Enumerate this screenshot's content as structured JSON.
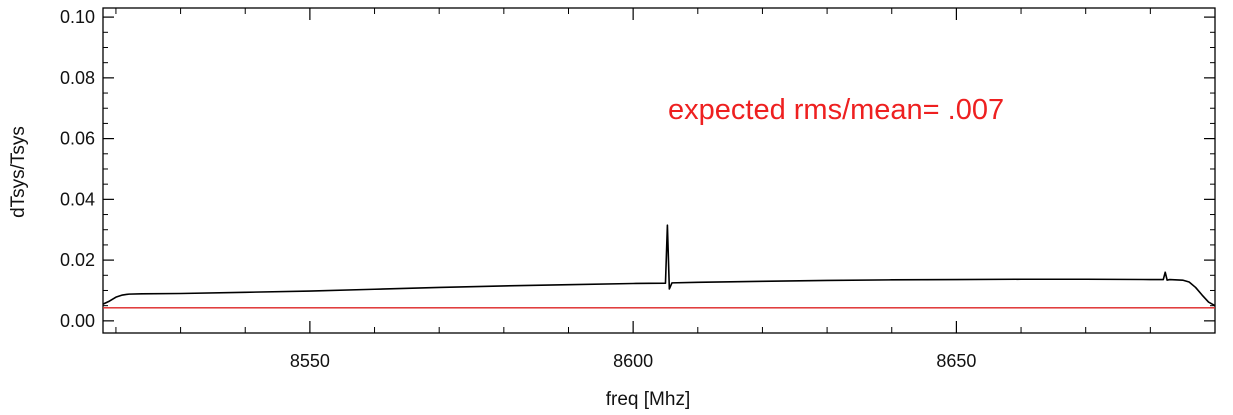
{
  "chart_data": {
    "type": "line",
    "title": "",
    "xlabel": "freq [Mhz]",
    "ylabel": "dTsys/Tsys",
    "xlim": [
      8518,
      8690
    ],
    "ylim": [
      -0.004,
      0.103
    ],
    "x_ticks": [
      8550,
      8600,
      8650
    ],
    "x_tick_labels": [
      "8550",
      "8600",
      "8650"
    ],
    "y_ticks": [
      0.0,
      0.02,
      0.04,
      0.06,
      0.08,
      0.1
    ],
    "y_tick_labels": [
      "0.00",
      "0.02",
      "0.04",
      "0.06",
      "0.08",
      "0.10"
    ],
    "grid": false,
    "annotations": [
      {
        "text": "expected rms/mean= .007",
        "color": "#ee2020"
      }
    ],
    "series": [
      {
        "color": "#000000",
        "x": [
          8518,
          8519,
          8520,
          8521,
          8522,
          8524,
          8530,
          8540,
          8550,
          8560,
          8570,
          8580,
          8590,
          8600,
          8605,
          8605.3,
          8605.6,
          8606,
          8610,
          8620,
          8630,
          8640,
          8650,
          8660,
          8670,
          8680,
          8682,
          8682.3,
          8682.6,
          8683,
          8685,
          8686,
          8687,
          8688,
          8689,
          8690
        ],
        "y": [
          0.0055,
          0.0065,
          0.0078,
          0.0085,
          0.0088,
          0.0089,
          0.009,
          0.0094,
          0.0098,
          0.0104,
          0.011,
          0.0115,
          0.0119,
          0.0123,
          0.0124,
          0.0315,
          0.0105,
          0.0125,
          0.0127,
          0.013,
          0.0133,
          0.0135,
          0.0136,
          0.0137,
          0.0137,
          0.0136,
          0.0136,
          0.016,
          0.0134,
          0.0136,
          0.0134,
          0.0128,
          0.011,
          0.0085,
          0.0062,
          0.005
        ]
      },
      {
        "color": "#dd2222",
        "x": [
          8518,
          8690
        ],
        "y": [
          0.0043,
          0.0043
        ]
      }
    ]
  }
}
